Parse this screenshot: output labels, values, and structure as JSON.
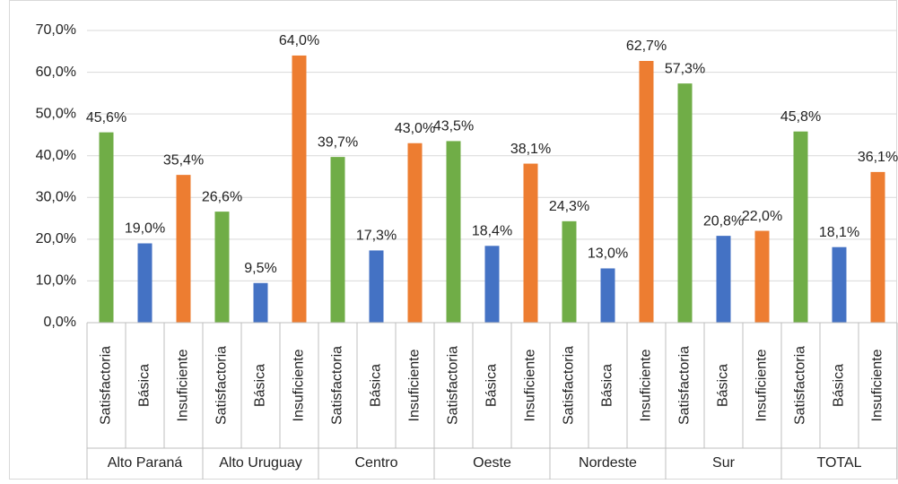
{
  "chart_data": {
    "type": "bar",
    "categories": [
      "Alto Paraná",
      "Alto Uruguay",
      "Centro",
      "Oeste",
      "Nordeste",
      "Sur",
      "TOTAL"
    ],
    "series": [
      {
        "name": "Satisfactoria",
        "color": "#70ad47",
        "values": [
          45.6,
          26.6,
          39.7,
          43.5,
          24.3,
          57.3,
          45.8
        ],
        "value_labels": [
          "45,6%",
          "26,6%",
          "39,7%",
          "43,5%",
          "24,3%",
          "57,3%",
          "45,8%"
        ]
      },
      {
        "name": "Básica",
        "color": "#4472c4",
        "values": [
          19.0,
          9.5,
          17.3,
          18.4,
          13.0,
          20.8,
          18.1
        ],
        "value_labels": [
          "19,0%",
          "9,5%",
          "17,3%",
          "18,4%",
          "13,0%",
          "20,8%",
          "18,1%"
        ]
      },
      {
        "name": "Insuficiente",
        "color": "#ed7d31",
        "values": [
          35.4,
          64.0,
          43.0,
          38.1,
          62.7,
          22.0,
          36.1
        ],
        "value_labels": [
          "35,4%",
          "64,0%",
          "43,0%",
          "38,1%",
          "62,7%",
          "22,0%",
          "36,1%"
        ]
      }
    ],
    "ylim": [
      0,
      70
    ],
    "yticks": [
      {
        "value": 0,
        "label": "0,0%"
      },
      {
        "value": 10,
        "label": "10,0%"
      },
      {
        "value": 20,
        "label": "20,0%"
      },
      {
        "value": 30,
        "label": "30,0%"
      },
      {
        "value": 40,
        "label": "40,0%"
      },
      {
        "value": 50,
        "label": "50,0%"
      },
      {
        "value": 60,
        "label": "60,0%"
      },
      {
        "value": 70,
        "label": "70,0%"
      }
    ],
    "grid": true
  }
}
